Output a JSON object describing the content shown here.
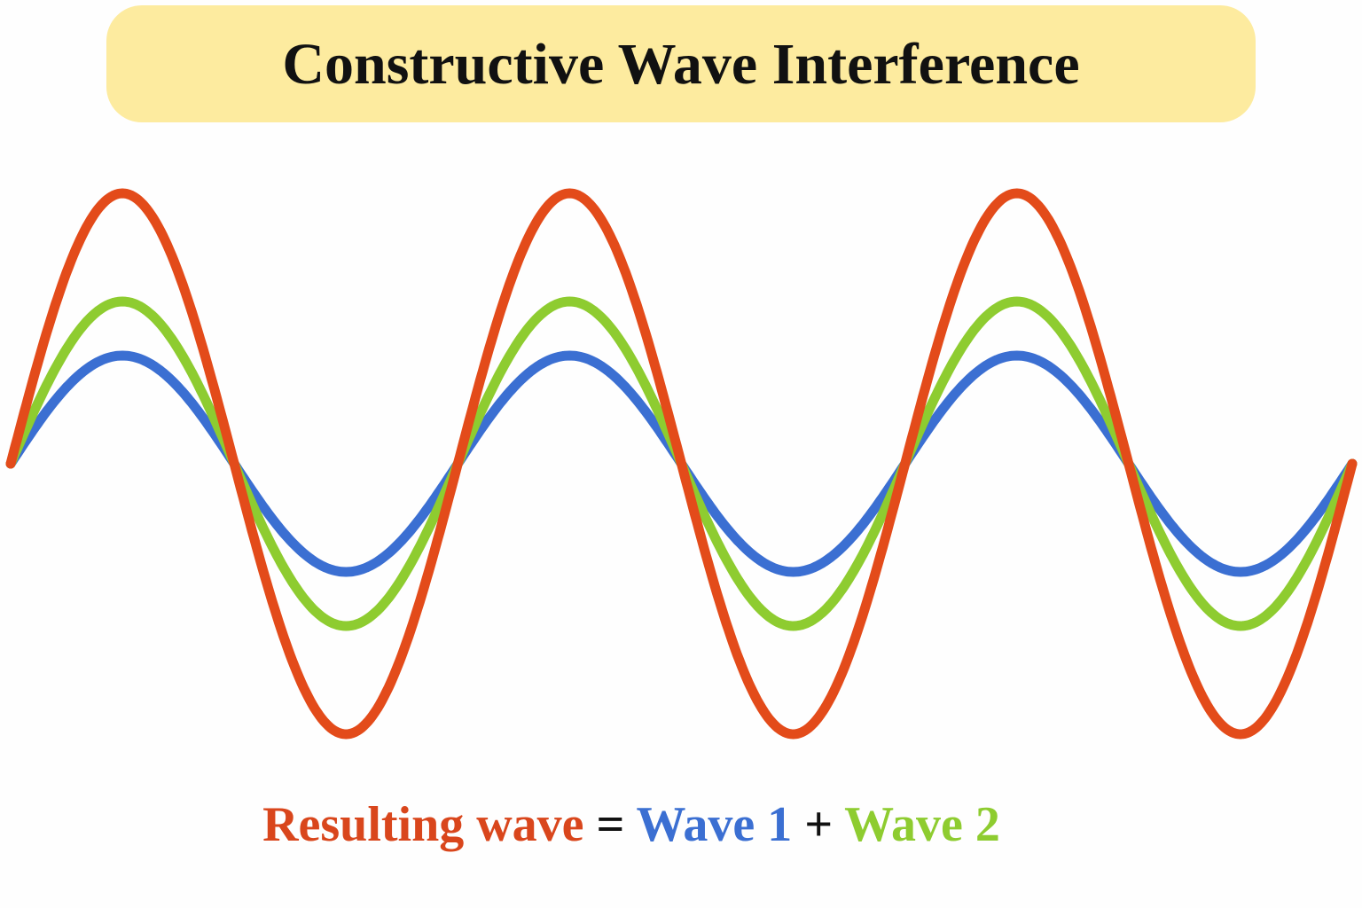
{
  "title": "Constructive Wave Interference",
  "formula": {
    "result": "Resulting wave",
    "equals": "=",
    "wave1": "Wave 1",
    "plus": "+",
    "wave2": "Wave 2"
  }
}
